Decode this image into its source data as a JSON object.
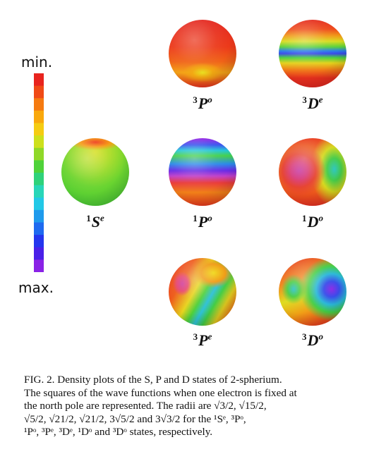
{
  "colorbar": {
    "min_label": "min.",
    "max_label": "max.",
    "colors_top_to_bottom": [
      "#e8241e",
      "#f04a16",
      "#f57a10",
      "#f9a80c",
      "#f5cc12",
      "#cde01c",
      "#8fd828",
      "#4fd23a",
      "#2fd27a",
      "#28d6b8",
      "#22c8e6",
      "#1e9aec",
      "#1e6af0",
      "#2436ee",
      "#4a20e8",
      "#8a22e6"
    ]
  },
  "spheres": [
    {
      "id": "1Se",
      "pre": "1",
      "letter": "S",
      "post": "e"
    },
    {
      "id": "3Po",
      "pre": "3",
      "letter": "P",
      "post": "o"
    },
    {
      "id": "1Po",
      "pre": "1",
      "letter": "P",
      "post": "o"
    },
    {
      "id": "3Pe",
      "pre": "3",
      "letter": "P",
      "post": "e"
    },
    {
      "id": "3De",
      "pre": "3",
      "letter": "D",
      "post": "e"
    },
    {
      "id": "1Do",
      "pre": "1",
      "letter": "D",
      "post": "o"
    },
    {
      "id": "3Do",
      "pre": "3",
      "letter": "D",
      "post": "o"
    }
  ],
  "caption": {
    "fig_label": "FIG. 2.",
    "line1": "Density plots of the S, P and D states of 2-spherium.",
    "line2": "The squares of the wave functions when one electron is fixed at",
    "line3": "the north pole are represented.  The radii are √3/2, √15/2,",
    "line4": "√5/2, √21/2, √21/2, 3√5/2 and 3√3/2 for the ¹Sᵉ, ³Pᵒ,",
    "line5": "¹Pᵒ, ³Pᵉ, ³Dᵉ, ¹Dᵒ and ³Dᵒ states, respectively."
  }
}
